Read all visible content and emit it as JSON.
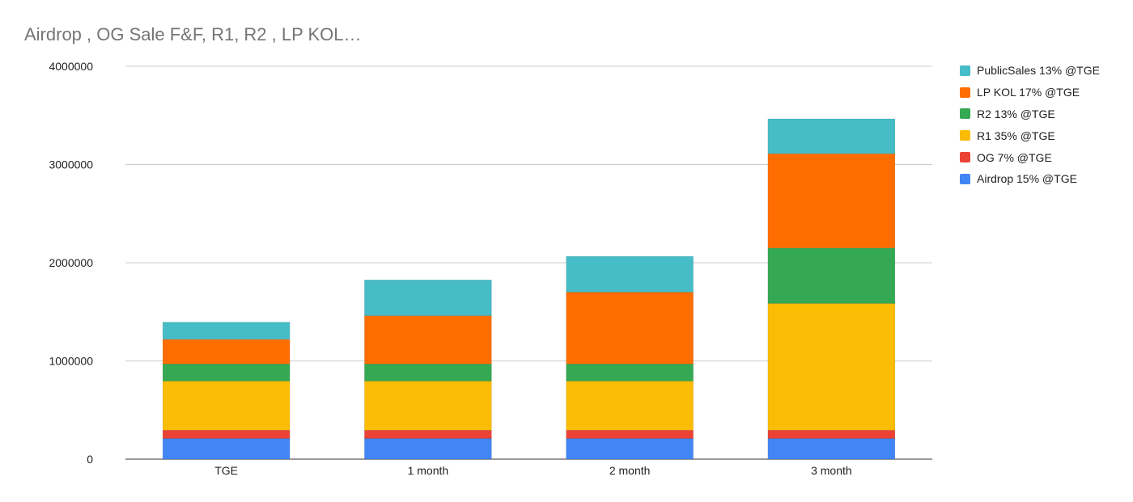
{
  "chart_data": {
    "type": "bar",
    "stacked": true,
    "title": "Airdrop , OG Sale F&F, R1, R2 , LP KOL…",
    "xlabel": "",
    "ylabel": "",
    "categories": [
      "TGE",
      "1 month",
      "2 month",
      "3 month"
    ],
    "ylim": [
      0,
      4000000
    ],
    "yticks": [
      "0",
      "1000000",
      "2000000",
      "3000000",
      "4000000"
    ],
    "grid": true,
    "legend_position": "right",
    "series": [
      {
        "name": "Airdrop 15% @TGE",
        "color": "#4285f4",
        "values": [
          210000,
          210000,
          210000,
          210000
        ]
      },
      {
        "name": "OG 7% @TGE",
        "color": "#ea4335",
        "values": [
          85000,
          85000,
          85000,
          85000
        ]
      },
      {
        "name": "R1 35% @TGE",
        "color": "#fbbc04",
        "values": [
          500000,
          500000,
          500000,
          1290000
        ]
      },
      {
        "name": "R2 13% @TGE",
        "color": "#34a853",
        "values": [
          175000,
          175000,
          175000,
          565000
        ]
      },
      {
        "name": "LP KOL 17% @TGE",
        "color": "#ff6d01",
        "values": [
          250000,
          490000,
          730000,
          960000
        ]
      },
      {
        "name": "PublicSales 13% @TGE",
        "color": "#46bdc6",
        "values": [
          175000,
          365000,
          365000,
          355000
        ]
      }
    ]
  }
}
